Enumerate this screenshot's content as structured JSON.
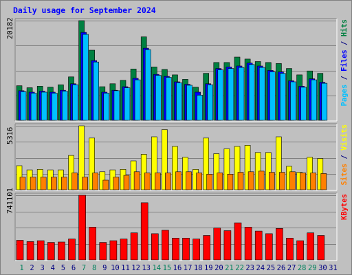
{
  "chart_data": {
    "type": "bar",
    "title": "Daily usage for September 2024",
    "categories": [
      "1",
      "2",
      "3",
      "4",
      "5",
      "6",
      "7",
      "8",
      "9",
      "10",
      "11",
      "12",
      "13",
      "14",
      "15",
      "16",
      "17",
      "18",
      "19",
      "20",
      "21",
      "22",
      "23",
      "24",
      "25",
      "26",
      "27",
      "28",
      "29",
      "30",
      "31"
    ],
    "weekend_days": [
      "1",
      "7",
      "8",
      "14",
      "15",
      "21",
      "22",
      "28",
      "29"
    ],
    "panels": [
      {
        "id": "hits_files_pages",
        "max_label": "20182",
        "ymax": 20182,
        "axis_label_parts": [
          {
            "text": "Pages",
            "color": "#00c0ff"
          },
          {
            "text": " / ",
            "color": "#000080"
          },
          {
            "text": "Files",
            "color": "#0000ff"
          },
          {
            "text": " / ",
            "color": "#000080"
          },
          {
            "text": "Hits",
            "color": "#008040"
          }
        ],
        "series": [
          {
            "name": "Hits",
            "color": "#008040",
            "values": [
              7000,
              6600,
              6900,
              6700,
              7200,
              8800,
              20182,
              14200,
              6800,
              7400,
              8100,
              10400,
              16900,
              10800,
              10300,
              9200,
              8300,
              6700,
              9500,
              11700,
              11700,
              12800,
              12400,
              11900,
              11700,
              11500,
              10500,
              9200,
              10000,
              9500,
              null
            ]
          },
          {
            "name": "Files",
            "color": "#0000ff",
            "values": [
              6000,
              5700,
              5900,
              5700,
              6100,
              7400,
              17800,
              12100,
              5700,
              6100,
              6800,
              8500,
              14600,
              9300,
              8900,
              7800,
              7300,
              5700,
              7400,
              10500,
              10800,
              11000,
              11600,
              11000,
              10100,
              9800,
              8000,
              6900,
              8400,
              7700,
              null
            ]
          },
          {
            "name": "Pages",
            "color": "#00c0ff",
            "values": [
              5800,
              5500,
              5700,
              5500,
              5900,
              7200,
              17400,
              11800,
              5500,
              6000,
              6600,
              8200,
              14300,
              9100,
              8700,
              7600,
              7100,
              5100,
              7200,
              10200,
              10500,
              10700,
              11300,
              10700,
              9800,
              9500,
              7800,
              6700,
              8200,
              7500,
              null
            ]
          }
        ],
        "palette": {
          "Hits": "#008040",
          "Files": "#0000ff",
          "Pages": "#00c0ff"
        }
      },
      {
        "id": "visits_sites",
        "max_label": "5316",
        "ymax": 5316,
        "axis_label_parts": [
          {
            "text": "Sites",
            "color": "#ff8000"
          },
          {
            "text": " / ",
            "color": "#000080"
          },
          {
            "text": "Visits",
            "color": "#ffff00"
          }
        ],
        "series": [
          {
            "name": "Visits",
            "color": "#ffff00",
            "values": [
              2000,
              1650,
              1700,
              1650,
              1650,
              2850,
              5316,
              4300,
              1500,
              1650,
              1700,
              2400,
              2950,
              4400,
              5000,
              3600,
              2700,
              1700,
              4300,
              3000,
              3400,
              3600,
              3700,
              3100,
              3100,
              4400,
              1950,
              1450,
              2700,
              2600,
              null
            ]
          },
          {
            "name": "Sites",
            "color": "#ff8000",
            "values": [
              1050,
              1050,
              1050,
              1050,
              1050,
              1400,
              1050,
              1400,
              800,
              1050,
              1200,
              1500,
              1400,
              1400,
              1400,
              1500,
              1500,
              1400,
              1300,
              1400,
              1300,
              1450,
              1500,
              1550,
              1450,
              1450,
              1500,
              1400,
              1400,
              1350,
              null
            ]
          }
        ],
        "palette": {
          "Visits": "#ffff00",
          "Sites": "#ff8000"
        }
      },
      {
        "id": "kbytes",
        "max_label": "741101",
        "ymax": 741101,
        "axis_label_parts": [
          {
            "text": "KBytes",
            "color": "#ff0000"
          }
        ],
        "series": [
          {
            "name": "KBytes",
            "color": "#ff0000",
            "values": [
              225000,
              210000,
              220000,
              200000,
              205000,
              240000,
              741101,
              375000,
              200000,
              220000,
              240000,
              310000,
              655000,
              300000,
              340000,
              250000,
              250000,
              240000,
              280000,
              365000,
              335000,
              425000,
              375000,
              330000,
              300000,
              360000,
              250000,
              220000,
              310000,
              280000,
              null
            ]
          }
        ],
        "palette": {
          "KBytes": "#ff0000"
        }
      }
    ],
    "axis_colors": {
      "weekday": "#000080",
      "weekend": "#00805c"
    }
  }
}
